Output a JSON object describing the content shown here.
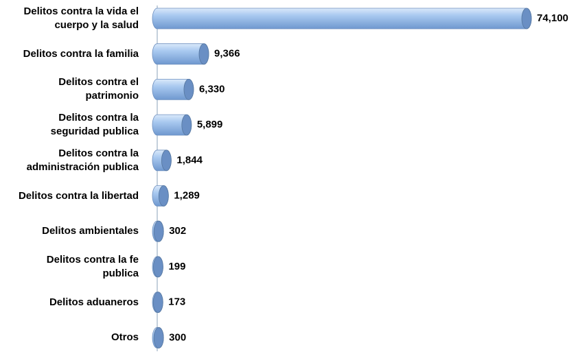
{
  "chart_data": {
    "type": "bar",
    "orientation": "horizontal",
    "categories": [
      "Delitos contra la vida el\ncuerpo y la salud",
      "Delitos contra la familia",
      "Delitos contra el\npatrimonio",
      "Delitos contra la\nseguridad publica",
      "Delitos contra la\nadministración publica",
      "Delitos contra la libertad",
      "Delitos ambientales",
      "Delitos contra la fe\npublica",
      "Delitos aduaneros",
      "Otros"
    ],
    "values": [
      74100,
      9366,
      6330,
      5899,
      1844,
      1289,
      302,
      199,
      173,
      300
    ],
    "value_labels": [
      "74,100",
      "9,366",
      "6,330",
      "5,899",
      "1,844",
      "1,289",
      "302",
      "199",
      "173",
      "300"
    ],
    "color": "#8fb6e6"
  }
}
